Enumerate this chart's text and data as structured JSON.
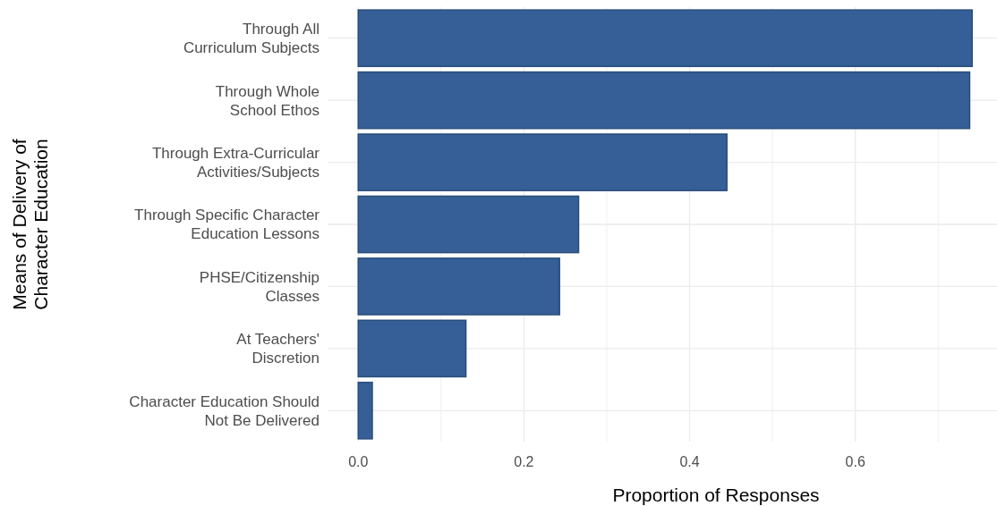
{
  "chart_data": {
    "type": "bar",
    "orientation": "horizontal",
    "xlabel": "Proportion of Responses",
    "ylabel": "Means of Delivery of\nCharacter Education",
    "categories": [
      "Through All\nCurriculum Subjects",
      "Through Whole\nSchool Ethos",
      "Through Extra-Curricular\nActivities/Subjects",
      "Through Specific Character\nEducation Lessons",
      "PHSE/Citizenship\nClasses",
      "At Teachers'\nDiscretion",
      "Character Education Should\nNot Be Delivered"
    ],
    "values": [
      0.741,
      0.738,
      0.445,
      0.266,
      0.243,
      0.13,
      0.017
    ],
    "color": "#315c94",
    "xlim": [
      -0.037,
      0.771
    ],
    "xticks": [
      {
        "value": 0,
        "label": "0.0"
      },
      {
        "value": 0.1,
        "label": null
      },
      {
        "value": 0.2,
        "label": "0.2"
      },
      {
        "value": 0.3,
        "label": null
      },
      {
        "value": 0.4,
        "label": "0.4"
      },
      {
        "value": 0.5,
        "label": null
      },
      {
        "value": 0.6,
        "label": "0.6"
      },
      {
        "value": 0.7,
        "label": null
      }
    ],
    "grid": true
  }
}
